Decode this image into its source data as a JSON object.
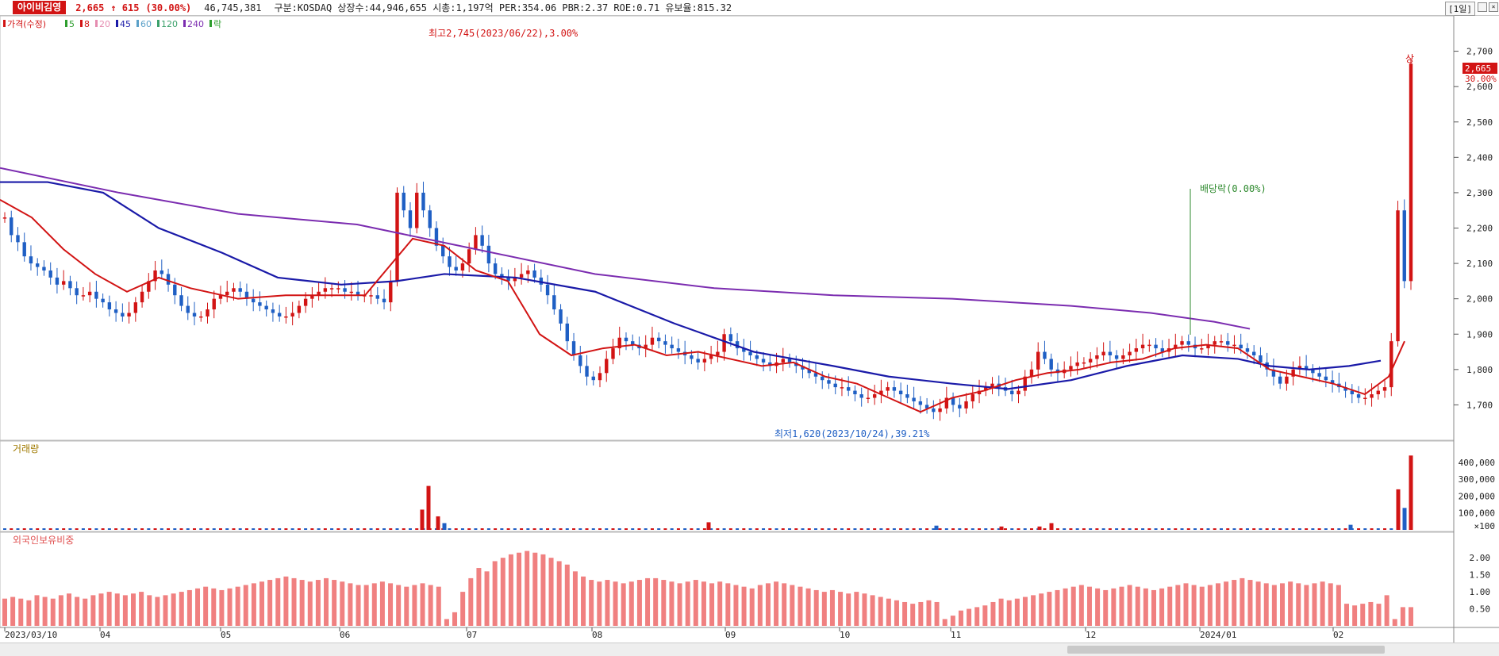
{
  "header": {
    "name": "아이비김영",
    "price": "2,665",
    "arrow": "↑",
    "change": "615",
    "change_pct": "(30.00%)",
    "volume": "46,745,381",
    "info": "구분:KOSDAQ 상장수:44,946,655 시총:1,197억 PER:354.06 PBR:2.37 ROE:0.71 유보율:815.32",
    "period": "[1일]"
  },
  "legend": {
    "items": [
      {
        "label": "가격(수정)",
        "color": "#d21414"
      },
      {
        "label": "5",
        "color": "#2e9e2e"
      },
      {
        "label": "8",
        "color": "#d21414"
      },
      {
        "label": "20",
        "color": "#e58cb0"
      },
      {
        "label": "45",
        "color": "#1a1aa8"
      },
      {
        "label": "60",
        "color": "#5aa0c8"
      },
      {
        "label": "120",
        "color": "#3aa06a"
      },
      {
        "label": "240",
        "color": "#7b2cb0"
      },
      {
        "label": "락",
        "color": "#2e9e2e"
      }
    ]
  },
  "annotations": {
    "high": "최고2,745(2023/06/22),3.00%",
    "low": "최저1,620(2023/10/24),39.21%",
    "dividend": "배당락(0.00%)",
    "limit_up": "상",
    "last_price": "2,665",
    "last_pct": "30.00%"
  },
  "volume_panel": {
    "title": "거래량"
  },
  "foreign_panel": {
    "title": "외국인보유비중"
  },
  "colors": {
    "up": "#d21414",
    "down": "#1f5fc4",
    "ma240": "#7b2cb0",
    "ma45": "#1a1aa8",
    "foreign": "#f08080"
  },
  "chart_data": {
    "type": "candlestick",
    "x_labels": [
      "2023/03/10",
      "04",
      "05",
      "06",
      "07",
      "08",
      "09",
      "10",
      "11",
      "12",
      "2024/01",
      "02"
    ],
    "price": {
      "y_ticks": [
        "2,700",
        "2,600",
        "2,500",
        "2,400",
        "2,300",
        "2,200",
        "2,100",
        "2,000",
        "1,900",
        "1,800",
        "1,700"
      ],
      "ylim": [
        1600,
        2800
      ],
      "close": [
        2230,
        2180,
        2160,
        2120,
        2100,
        2090,
        2080,
        2060,
        2040,
        2050,
        2030,
        2010,
        2010,
        2020,
        2000,
        1990,
        1970,
        1960,
        1950,
        1960,
        1990,
        2020,
        2050,
        2080,
        2070,
        2040,
        2010,
        1980,
        1960,
        1950,
        1950,
        1970,
        2000,
        2010,
        2020,
        2030,
        2020,
        2000,
        1990,
        1980,
        1970,
        1960,
        1950,
        1950,
        1960,
        1980,
        2000,
        2010,
        2020,
        2030,
        2030,
        2030,
        2020,
        2020,
        2010,
        2010,
        2010,
        2000,
        1990,
        2050,
        2300,
        2250,
        2200,
        2300,
        2250,
        2200,
        2150,
        2120,
        2090,
        2080,
        2100,
        2140,
        2180,
        2150,
        2100,
        2070,
        2060,
        2050,
        2060,
        2070,
        2080,
        2060,
        2040,
        2010,
        1970,
        1930,
        1880,
        1840,
        1810,
        1780,
        1770,
        1790,
        1830,
        1860,
        1890,
        1880,
        1870,
        1860,
        1870,
        1890,
        1880,
        1870,
        1860,
        1850,
        1840,
        1830,
        1820,
        1830,
        1840,
        1850,
        1900,
        1880,
        1860,
        1850,
        1840,
        1830,
        1820,
        1810,
        1820,
        1830,
        1820,
        1810,
        1800,
        1790,
        1780,
        1770,
        1760,
        1750,
        1750,
        1740,
        1730,
        1720,
        1720,
        1730,
        1740,
        1750,
        1740,
        1730,
        1720,
        1710,
        1700,
        1690,
        1680,
        1690,
        1720,
        1700,
        1690,
        1710,
        1730,
        1740,
        1750,
        1760,
        1750,
        1740,
        1730,
        1740,
        1780,
        1800,
        1850,
        1830,
        1800,
        1790,
        1800,
        1810,
        1820,
        1820,
        1830,
        1840,
        1850,
        1840,
        1830,
        1840,
        1850,
        1860,
        1870,
        1870,
        1860,
        1850,
        1860,
        1870,
        1880,
        1870,
        1860,
        1860,
        1870,
        1880,
        1880,
        1870,
        1870,
        1860,
        1850,
        1840,
        1820,
        1800,
        1780,
        1760,
        1780,
        1800,
        1810,
        1800,
        1790,
        1780,
        1770,
        1760,
        1750,
        1740,
        1730,
        1720,
        1720,
        1730,
        1740,
        1750,
        1880,
        2250,
        2050,
        2665
      ],
      "series": [
        {
          "name": "240",
          "points": [
            [
              0,
              2370
            ],
            [
              150,
              2300
            ],
            [
              300,
              2240
            ],
            [
              450,
              2210
            ],
            [
              600,
              2140
            ],
            [
              750,
              2070
            ],
            [
              900,
              2030
            ],
            [
              1050,
              2010
            ],
            [
              1200,
              2000
            ],
            [
              1350,
              1980
            ],
            [
              1450,
              1960
            ],
            [
              1530,
              1935
            ],
            [
              1575,
              1915
            ]
          ]
        },
        {
          "name": "45",
          "points": [
            [
              0,
              2330
            ],
            [
              60,
              2330
            ],
            [
              130,
              2300
            ],
            [
              200,
              2200
            ],
            [
              280,
              2130
            ],
            [
              350,
              2060
            ],
            [
              430,
              2040
            ],
            [
              500,
              2050
            ],
            [
              560,
              2070
            ],
            [
              650,
              2060
            ],
            [
              750,
              2020
            ],
            [
              850,
              1930
            ],
            [
              950,
              1850
            ],
            [
              1050,
              1810
            ],
            [
              1120,
              1780
            ],
            [
              1200,
              1760
            ],
            [
              1270,
              1745
            ],
            [
              1350,
              1770
            ],
            [
              1420,
              1810
            ],
            [
              1490,
              1840
            ],
            [
              1560,
              1830
            ],
            [
              1600,
              1810
            ],
            [
              1650,
              1800
            ],
            [
              1700,
              1810
            ],
            [
              1740,
              1825
            ]
          ]
        },
        {
          "name": "8",
          "points": [
            [
              0,
              2280
            ],
            [
              40,
              2230
            ],
            [
              80,
              2140
            ],
            [
              120,
              2070
            ],
            [
              160,
              2020
            ],
            [
              200,
              2060
            ],
            [
              240,
              2030
            ],
            [
              300,
              2000
            ],
            [
              360,
              2010
            ],
            [
              420,
              2010
            ],
            [
              460,
              2010
            ],
            [
              520,
              2170
            ],
            [
              560,
              2150
            ],
            [
              600,
              2080
            ],
            [
              640,
              2050
            ],
            [
              680,
              1900
            ],
            [
              720,
              1840
            ],
            [
              760,
              1860
            ],
            [
              800,
              1870
            ],
            [
              840,
              1840
            ],
            [
              880,
              1850
            ],
            [
              920,
              1830
            ],
            [
              960,
              1810
            ],
            [
              1000,
              1820
            ],
            [
              1040,
              1780
            ],
            [
              1080,
              1760
            ],
            [
              1120,
              1720
            ],
            [
              1160,
              1680
            ],
            [
              1200,
              1720
            ],
            [
              1240,
              1740
            ],
            [
              1280,
              1770
            ],
            [
              1320,
              1790
            ],
            [
              1360,
              1800
            ],
            [
              1400,
              1820
            ],
            [
              1440,
              1830
            ],
            [
              1480,
              1860
            ],
            [
              1520,
              1870
            ],
            [
              1560,
              1860
            ],
            [
              1600,
              1800
            ],
            [
              1640,
              1780
            ],
            [
              1680,
              1760
            ],
            [
              1720,
              1730
            ],
            [
              1750,
              1780
            ],
            [
              1770,
              1880
            ]
          ]
        }
      ]
    },
    "volume": {
      "y_ticks": [
        "400,000",
        "300,000",
        "200,000",
        "100,000",
        "×100"
      ],
      "ylim": [
        0,
        460000
      ],
      "spikes": [
        {
          "x": 532,
          "value": 120000
        },
        {
          "x": 540,
          "value": 260000
        },
        {
          "x": 552,
          "value": 80000
        },
        {
          "x": 560,
          "value": 40000
        },
        {
          "x": 893,
          "value": 45000
        },
        {
          "x": 1180,
          "value": 25000
        },
        {
          "x": 1262,
          "value": 20000
        },
        {
          "x": 1310,
          "value": 20000
        },
        {
          "x": 1325,
          "value": 40000
        },
        {
          "x": 1702,
          "value": 30000
        },
        {
          "x": 1762,
          "value": 240000
        },
        {
          "x": 1770,
          "value": 130000
        },
        {
          "x": 1778,
          "value": 440000
        }
      ]
    },
    "foreign": {
      "y_ticks": [
        "2.00",
        "1.50",
        "1.00",
        "0.50"
      ],
      "ylim": [
        0,
        2.4
      ],
      "values": [
        0.8,
        0.85,
        0.8,
        0.75,
        0.9,
        0.85,
        0.8,
        0.9,
        0.95,
        0.85,
        0.8,
        0.9,
        0.95,
        1.0,
        0.95,
        0.9,
        0.95,
        1.0,
        0.9,
        0.85,
        0.9,
        0.95,
        1.0,
        1.05,
        1.1,
        1.15,
        1.1,
        1.05,
        1.1,
        1.15,
        1.2,
        1.25,
        1.3,
        1.35,
        1.4,
        1.45,
        1.4,
        1.35,
        1.3,
        1.35,
        1.4,
        1.35,
        1.3,
        1.25,
        1.2,
        1.2,
        1.25,
        1.3,
        1.25,
        1.2,
        1.15,
        1.2,
        1.25,
        1.2,
        1.15,
        0.2,
        0.4,
        1.0,
        1.4,
        1.7,
        1.6,
        1.9,
        2.0,
        2.1,
        2.15,
        2.2,
        2.15,
        2.1,
        2.0,
        1.9,
        1.8,
        1.6,
        1.45,
        1.35,
        1.3,
        1.35,
        1.3,
        1.25,
        1.3,
        1.35,
        1.4,
        1.4,
        1.35,
        1.3,
        1.25,
        1.3,
        1.35,
        1.3,
        1.25,
        1.3,
        1.25,
        1.2,
        1.15,
        1.1,
        1.2,
        1.25,
        1.3,
        1.25,
        1.2,
        1.15,
        1.1,
        1.05,
        1.0,
        1.05,
        1.0,
        0.95,
        1.0,
        0.95,
        0.9,
        0.85,
        0.8,
        0.75,
        0.7,
        0.65,
        0.7,
        0.75,
        0.7,
        0.2,
        0.3,
        0.45,
        0.5,
        0.55,
        0.6,
        0.7,
        0.8,
        0.75,
        0.8,
        0.85,
        0.9,
        0.95,
        1.0,
        1.05,
        1.1,
        1.15,
        1.2,
        1.15,
        1.1,
        1.05,
        1.1,
        1.15,
        1.2,
        1.15,
        1.1,
        1.05,
        1.1,
        1.15,
        1.2,
        1.25,
        1.2,
        1.15,
        1.2,
        1.25,
        1.3,
        1.35,
        1.4,
        1.35,
        1.3,
        1.25,
        1.2,
        1.25,
        1.3,
        1.25,
        1.2,
        1.25,
        1.3,
        1.25,
        1.2,
        0.65,
        0.6,
        0.65,
        0.7,
        0.65,
        0.9,
        0.2,
        0.55,
        0.55
      ]
    }
  }
}
